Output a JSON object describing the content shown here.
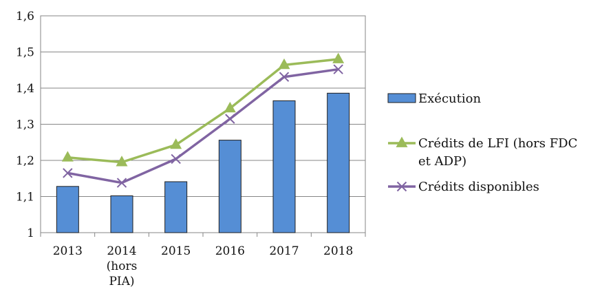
{
  "chart_data": {
    "type": "bar",
    "categories": [
      [
        "2013"
      ],
      [
        "2014",
        "(hors",
        "PIA)"
      ],
      [
        "2015"
      ],
      [
        "2016"
      ],
      [
        "2017"
      ],
      [
        "2018"
      ]
    ],
    "ylim": [
      1,
      1.6
    ],
    "yticks": [
      "1",
      "1,1",
      "1,2",
      "1,3",
      "1,4",
      "1,5",
      "1,6"
    ],
    "grid": true,
    "legend_position": "right",
    "series": [
      {
        "name": "Exécution",
        "kind": "bar",
        "color": "#558ed5",
        "values": [
          1.128,
          1.102,
          1.141,
          1.256,
          1.365,
          1.386
        ]
      },
      {
        "name": [
          "Crédits de LFI (hors FDC",
          "et ADP)"
        ],
        "kind": "line",
        "marker": "triangle",
        "color": "#9bbb59",
        "values": [
          1.208,
          1.195,
          1.243,
          1.344,
          1.464,
          1.48
        ]
      },
      {
        "name": "Crédits disponibles",
        "kind": "line",
        "marker": "x",
        "color": "#8064a2",
        "values": [
          1.165,
          1.138,
          1.204,
          1.315,
          1.431,
          1.452
        ]
      }
    ]
  }
}
